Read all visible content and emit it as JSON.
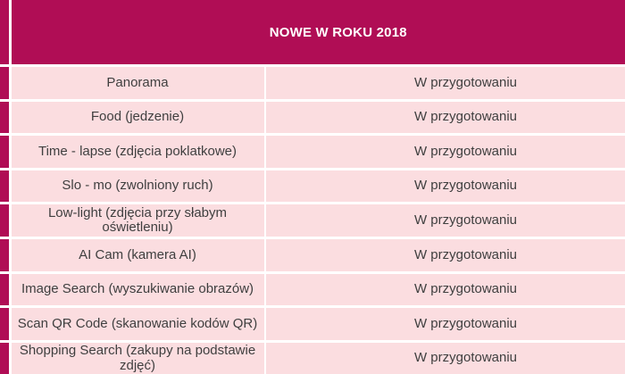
{
  "table": {
    "header": "NOWE W ROKU 2018",
    "rows": [
      {
        "feature": "Panorama",
        "status": "W przygotowaniu"
      },
      {
        "feature": "Food (jedzenie)",
        "status": "W przygotowaniu"
      },
      {
        "feature": "Time - lapse (zdjęcia poklatkowe)",
        "status": "W przygotowaniu"
      },
      {
        "feature": "Slo - mo (zwolniony ruch)",
        "status": "W przygotowaniu"
      },
      {
        "feature": "Low-light (zdjęcia przy słabym oświetleniu)",
        "status": "W przygotowaniu"
      },
      {
        "feature": "AI Cam (kamera AI)",
        "status": "W przygotowaniu"
      },
      {
        "feature": "Image Search (wyszukiwanie obrazów)",
        "status": "W przygotowaniu"
      },
      {
        "feature": "Scan QR Code (skanowanie kodów QR)",
        "status": "W przygotowaniu"
      },
      {
        "feature": "Shopping Search (zakupy na podstawie zdjęć)",
        "status": "W przygotowaniu"
      }
    ]
  },
  "colors": {
    "accent": "#b00d55",
    "row_background": "#fbdde0",
    "gridline": "#ffffff",
    "body_text": "#3f3f3f",
    "header_text": "#ffffff"
  },
  "chart_data": {
    "type": "table",
    "title": "NOWE W ROKU 2018",
    "rows": [
      [
        "Panorama",
        "W przygotowaniu"
      ],
      [
        "Food (jedzenie)",
        "W przygotowaniu"
      ],
      [
        "Time - lapse (zdjęcia poklatkowe)",
        "W przygotowaniu"
      ],
      [
        "Slo - mo (zwolniony ruch)",
        "W przygotowaniu"
      ],
      [
        "Low-light (zdjęcia przy słabym oświetleniu)",
        "W przygotowaniu"
      ],
      [
        "AI Cam (kamera AI)",
        "W przygotowaniu"
      ],
      [
        "Image Search (wyszukiwanie obrazów)",
        "W przygotowaniu"
      ],
      [
        "Scan QR Code (skanowanie kodów QR)",
        "W przygotowaniu"
      ],
      [
        "Shopping Search (zakupy na podstawie zdjęć)",
        "W przygotowaniu"
      ]
    ]
  }
}
